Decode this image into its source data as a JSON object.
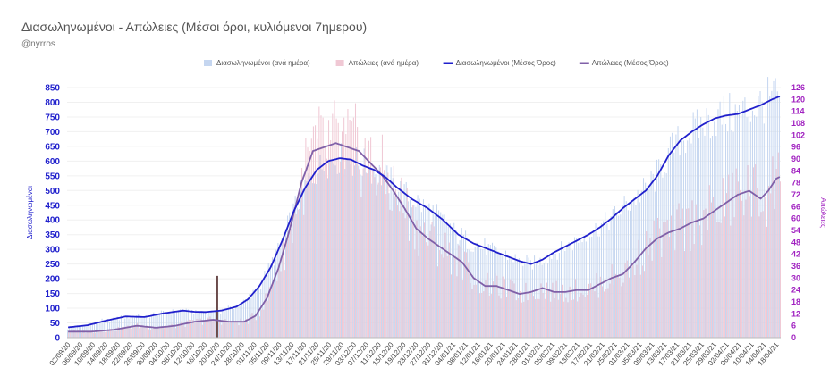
{
  "header": {
    "title": "Διασωληνωμένοι - Απώλειες (Μέσοι όροι, κυλιόμενοι 7ημερου)",
    "subtitle": "@nyrros"
  },
  "chart_data": {
    "type": "bar+line",
    "y_left_label": "Διασωληνωμένοι",
    "y_right_label": "Απώλειες",
    "y_left_ticks": [
      0,
      50,
      100,
      150,
      200,
      250,
      300,
      350,
      400,
      450,
      500,
      550,
      600,
      650,
      700,
      750,
      800,
      850
    ],
    "y_right_ticks": [
      0,
      6,
      12,
      18,
      24,
      30,
      36,
      42,
      48,
      54,
      60,
      66,
      72,
      78,
      84,
      90,
      96,
      102,
      108,
      114,
      120,
      126
    ],
    "y_left_range": [
      0,
      850
    ],
    "y_right_range": [
      0,
      126
    ],
    "x_labels": [
      "02/09/20",
      "06/09/20",
      "10/09/20",
      "14/09/20",
      "18/09/20",
      "22/09/20",
      "26/09/20",
      "30/09/20",
      "04/10/20",
      "08/10/20",
      "12/10/20",
      "16/10/20",
      "20/10/20",
      "24/10/20",
      "28/10/20",
      "01/11/20",
      "05/11/20",
      "09/11/20",
      "13/11/20",
      "17/11/20",
      "21/11/20",
      "25/11/20",
      "29/11/20",
      "03/12/20",
      "07/12/20",
      "11/12/20",
      "15/12/20",
      "19/12/20",
      "23/12/20",
      "27/12/20",
      "31/12/20",
      "04/01/21",
      "08/01/21",
      "12/01/21",
      "16/01/21",
      "20/01/21",
      "24/01/21",
      "28/01/21",
      "01/02/21",
      "05/02/21",
      "09/02/21",
      "13/02/21",
      "17/02/21",
      "21/02/21",
      "25/02/21",
      "01/03/21",
      "05/03/21",
      "09/03/21",
      "13/03/21",
      "17/03/21",
      "21/03/21",
      "25/03/21",
      "29/03/21",
      "02/04/21",
      "06/04/21",
      "10/04/21",
      "14/04/21",
      "18/04/21"
    ],
    "legend": [
      {
        "name": "Διασωληνωμένοι (ανά ημέρα)",
        "color": "#c5d6f0",
        "kind": "bar"
      },
      {
        "name": "Απώλειες (ανά ημέρα)",
        "color": "#f0c8d4",
        "kind": "bar"
      },
      {
        "name": "Διασωληνωμένοι (Μέσος Όρος)",
        "color": "#2020cc",
        "kind": "line"
      },
      {
        "name": "Απώλειες (Μέσος Όρος)",
        "color": "#8060a8",
        "kind": "line"
      }
    ],
    "intubated_avg_anchors": [
      [
        0,
        35
      ],
      [
        10,
        42
      ],
      [
        20,
        58
      ],
      [
        30,
        72
      ],
      [
        40,
        70
      ],
      [
        50,
        83
      ],
      [
        60,
        92
      ],
      [
        66,
        88
      ],
      [
        72,
        87
      ],
      [
        80,
        92
      ],
      [
        88,
        105
      ],
      [
        94,
        130
      ],
      [
        100,
        175
      ],
      [
        106,
        240
      ],
      [
        112,
        330
      ],
      [
        118,
        430
      ],
      [
        124,
        510
      ],
      [
        130,
        570
      ],
      [
        136,
        600
      ],
      [
        142,
        610
      ],
      [
        148,
        605
      ],
      [
        154,
        585
      ],
      [
        160,
        570
      ],
      [
        166,
        545
      ],
      [
        172,
        510
      ],
      [
        180,
        470
      ],
      [
        188,
        440
      ],
      [
        196,
        400
      ],
      [
        204,
        350
      ],
      [
        212,
        320
      ],
      [
        220,
        300
      ],
      [
        228,
        280
      ],
      [
        236,
        260
      ],
      [
        242,
        250
      ],
      [
        248,
        265
      ],
      [
        254,
        290
      ],
      [
        260,
        310
      ],
      [
        266,
        330
      ],
      [
        272,
        350
      ],
      [
        278,
        375
      ],
      [
        284,
        405
      ],
      [
        290,
        440
      ],
      [
        296,
        470
      ],
      [
        302,
        500
      ],
      [
        308,
        550
      ],
      [
        314,
        620
      ],
      [
        320,
        670
      ],
      [
        326,
        700
      ],
      [
        332,
        725
      ],
      [
        338,
        745
      ],
      [
        344,
        755
      ],
      [
        350,
        760
      ],
      [
        356,
        775
      ],
      [
        362,
        790
      ],
      [
        368,
        810
      ],
      [
        372,
        820
      ]
    ],
    "deaths_avg_anchors": [
      [
        0,
        3
      ],
      [
        12,
        3
      ],
      [
        24,
        4
      ],
      [
        36,
        6
      ],
      [
        46,
        5
      ],
      [
        56,
        6
      ],
      [
        66,
        8
      ],
      [
        76,
        9
      ],
      [
        84,
        8
      ],
      [
        92,
        8
      ],
      [
        98,
        11
      ],
      [
        104,
        20
      ],
      [
        110,
        35
      ],
      [
        116,
        55
      ],
      [
        122,
        78
      ],
      [
        128,
        94
      ],
      [
        134,
        96
      ],
      [
        140,
        98
      ],
      [
        146,
        96
      ],
      [
        152,
        94
      ],
      [
        158,
        88
      ],
      [
        164,
        82
      ],
      [
        170,
        74
      ],
      [
        176,
        65
      ],
      [
        182,
        55
      ],
      [
        188,
        50
      ],
      [
        194,
        46
      ],
      [
        200,
        42
      ],
      [
        206,
        38
      ],
      [
        212,
        30
      ],
      [
        218,
        26
      ],
      [
        224,
        26
      ],
      [
        230,
        24
      ],
      [
        236,
        22
      ],
      [
        242,
        23
      ],
      [
        248,
        25
      ],
      [
        254,
        23
      ],
      [
        260,
        23
      ],
      [
        266,
        24
      ],
      [
        272,
        24
      ],
      [
        278,
        27
      ],
      [
        284,
        30
      ],
      [
        290,
        32
      ],
      [
        296,
        38
      ],
      [
        302,
        45
      ],
      [
        308,
        50
      ],
      [
        314,
        53
      ],
      [
        320,
        55
      ],
      [
        326,
        58
      ],
      [
        332,
        60
      ],
      [
        338,
        64
      ],
      [
        344,
        68
      ],
      [
        350,
        72
      ],
      [
        356,
        74
      ],
      [
        362,
        70
      ],
      [
        366,
        74
      ],
      [
        370,
        80
      ],
      [
        372,
        81
      ]
    ],
    "n_days": 373
  }
}
